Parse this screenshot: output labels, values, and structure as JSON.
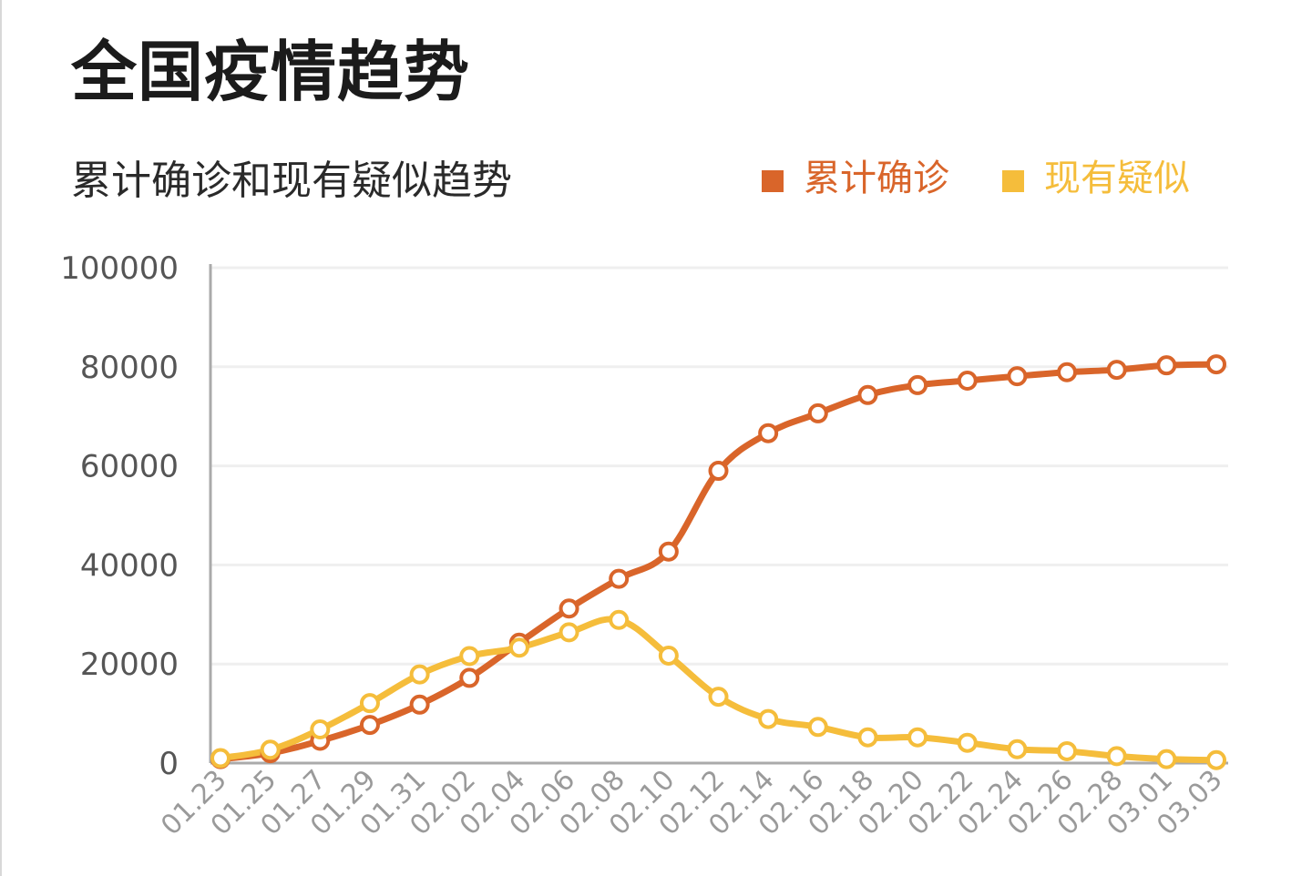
{
  "title": "全国疫情趋势",
  "colors": {
    "confirmed": "#d9652a",
    "suspected": "#f5bd3b",
    "grid": "#efefef",
    "axis": "#aaaaaa"
  },
  "chart_data": {
    "type": "line",
    "title": "累计确诊和现有疑似趋势",
    "legend_position": "top-right",
    "grid": true,
    "ylim": [
      0,
      100000
    ],
    "yticks": [
      0,
      20000,
      40000,
      60000,
      80000,
      100000
    ],
    "categories": [
      "01.23",
      "01.25",
      "01.27",
      "01.29",
      "01.31",
      "02.02",
      "02.04",
      "02.06",
      "02.08",
      "02.10",
      "02.12",
      "02.14",
      "02.16",
      "02.18",
      "02.20",
      "02.22",
      "02.24",
      "02.26",
      "02.28",
      "03.01",
      "03.03"
    ],
    "series": [
      {
        "name": "累计确诊",
        "values": [
          800,
          2000,
          4500,
          7700,
          11800,
          17200,
          24300,
          31200,
          37200,
          42700,
          59000,
          66600,
          70600,
          74300,
          76300,
          77200,
          78100,
          78900,
          79400,
          80300,
          80500
        ]
      },
      {
        "name": "现有疑似",
        "values": [
          1000,
          2700,
          6800,
          12100,
          17900,
          21600,
          23300,
          26400,
          28900,
          21700,
          13400,
          8900,
          7300,
          5200,
          5200,
          4100,
          2800,
          2400,
          1400,
          800,
          600
        ]
      }
    ]
  }
}
